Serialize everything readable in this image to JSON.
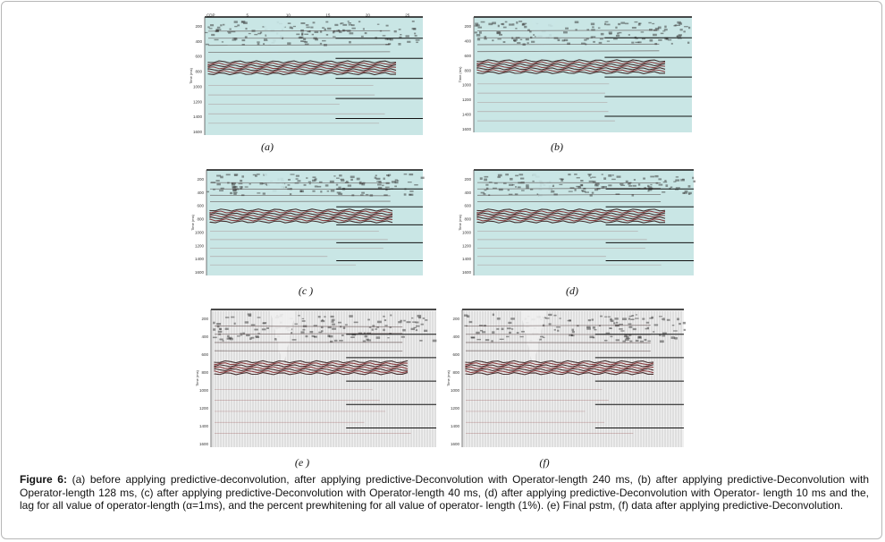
{
  "figure": {
    "panels": [
      {
        "id": "a",
        "label": "(a)",
        "style": "smooth",
        "ticks_top": [
          "CDP",
          "5",
          "10",
          "15",
          "20",
          "25"
        ],
        "ticks_y": [
          "200",
          "400",
          "600",
          "800",
          "1000",
          "1200",
          "1400",
          "1600"
        ],
        "axis_title": "Time (ms)"
      },
      {
        "id": "b",
        "label": "(b)",
        "style": "smooth",
        "ticks_top": [],
        "ticks_y": [
          "200",
          "400",
          "600",
          "800",
          "1000",
          "1200",
          "1400",
          "1600"
        ],
        "axis_title": "Time (ms)"
      },
      {
        "id": "c",
        "label": "(c )",
        "style": "smooth",
        "ticks_top": [],
        "ticks_y": [
          "200",
          "400",
          "600",
          "800",
          "1000",
          "1200",
          "1400",
          "1600"
        ],
        "axis_title": "Time (ms)"
      },
      {
        "id": "d",
        "label": "(d)",
        "style": "smooth",
        "ticks_top": [],
        "ticks_y": [
          "200",
          "400",
          "600",
          "800",
          "1000",
          "1200",
          "1400",
          "1600"
        ],
        "axis_title": "Time (ms)"
      },
      {
        "id": "e",
        "label": "(e )",
        "style": "wiggle",
        "ticks_top": [],
        "ticks_y": [
          "200",
          "400",
          "600",
          "800",
          "1000",
          "1200",
          "1400",
          "1600"
        ],
        "axis_title": "Time (ms)"
      },
      {
        "id": "f",
        "label": "(f)",
        "style": "wiggle",
        "ticks_top": [],
        "ticks_y": [
          "200",
          "400",
          "600",
          "800",
          "1000",
          "1200",
          "1400",
          "1600"
        ],
        "axis_title": "Time (ms)"
      }
    ],
    "caption": {
      "lead": "Figure 6:",
      "text": " (a) before applying predictive-deconvolution, after applying predictive-Deconvolution with Operator-length 240 ms, (b) after applying predictive-Deconvolution with Operator-length 128 ms, (c) after applying predictive-Deconvolution with Operator-length 40 ms, (d) after applying predictive-Deconvolution with Operator- length 10 ms and the, lag for all value of operator-length (α=1ms), and the percent prewhitening for all value of operator- length (1%). (e) Final pstm, (f) data after applying predictive-Deconvolution."
    },
    "colors": {
      "smooth_bg": "#c9e6e5",
      "wiggle_bg": "#f0f0f0",
      "reflector": "#7a1e22",
      "line": "#111111"
    }
  }
}
